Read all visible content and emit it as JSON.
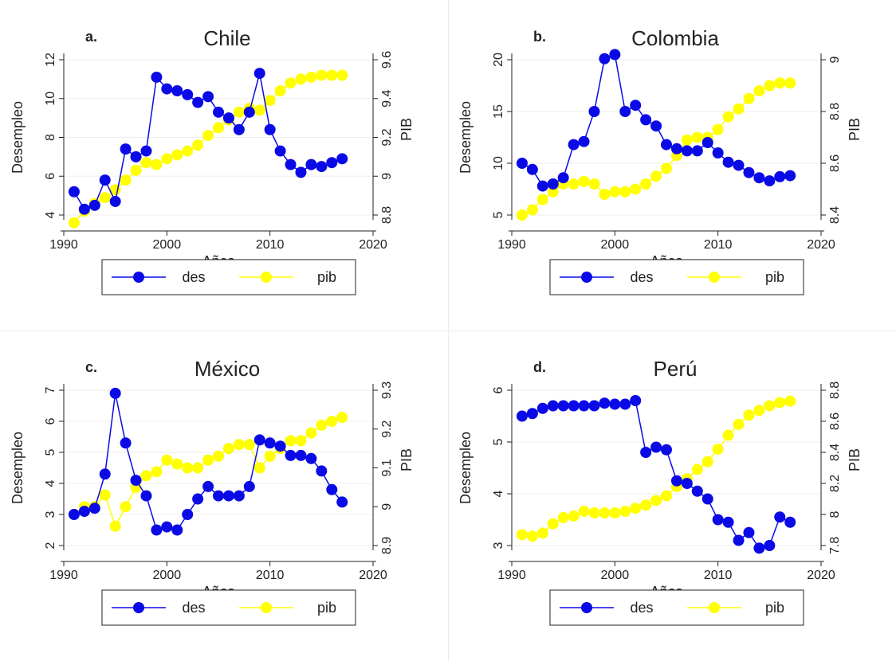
{
  "chart_data": [
    {
      "type": "line",
      "letter": "a.",
      "title": "Chile",
      "xlabel": "Años",
      "ylabel": "Desempleo",
      "y2label": "PIB",
      "x": [
        1991,
        1992,
        1993,
        1994,
        1995,
        1996,
        1997,
        1998,
        1999,
        2000,
        2001,
        2002,
        2003,
        2004,
        2005,
        2006,
        2007,
        2008,
        2009,
        2010,
        2011,
        2012,
        2013,
        2014,
        2015,
        2016,
        2017
      ],
      "xlim": [
        1990,
        2020
      ],
      "xticks": [
        "1990",
        "2000",
        "2010",
        "2020"
      ],
      "ylim": [
        4,
        12
      ],
      "yticks": [
        "4",
        "6",
        "8",
        "10",
        "12"
      ],
      "y2lim": [
        8.8,
        9.6
      ],
      "y2ticks": [
        "8.8",
        "9",
        "9.2",
        "9.4",
        "9.6"
      ],
      "series": [
        {
          "name": "des",
          "color": "#0a0ae6",
          "axis": "left",
          "values": [
            5.2,
            4.3,
            4.5,
            5.8,
            4.7,
            7.4,
            7.0,
            7.3,
            11.1,
            10.5,
            10.4,
            10.2,
            9.8,
            10.1,
            9.3,
            9.0,
            8.4,
            9.3,
            11.3,
            8.4,
            7.3,
            6.6,
            6.2,
            6.6,
            6.5,
            6.7,
            6.9
          ]
        },
        {
          "name": "pib",
          "color": "#ffff00",
          "axis": "right",
          "values": [
            8.76,
            8.82,
            8.86,
            8.89,
            8.93,
            8.98,
            9.03,
            9.07,
            9.06,
            9.09,
            9.11,
            9.13,
            9.16,
            9.21,
            9.25,
            9.29,
            9.33,
            9.35,
            9.34,
            9.39,
            9.44,
            9.48,
            9.5,
            9.51,
            9.52,
            9.52,
            9.52
          ]
        }
      ],
      "legend": "bottom"
    },
    {
      "type": "line",
      "letter": "b.",
      "title": "Colombia",
      "xlabel": "Años",
      "ylabel": "Desempleo",
      "y2label": "PIB",
      "x": [
        1991,
        1992,
        1993,
        1994,
        1995,
        1996,
        1997,
        1998,
        1999,
        2000,
        2001,
        2002,
        2003,
        2004,
        2005,
        2006,
        2007,
        2008,
        2009,
        2010,
        2011,
        2012,
        2013,
        2014,
        2015,
        2016,
        2017
      ],
      "xlim": [
        1990,
        2020
      ],
      "xticks": [
        "1990",
        "2000",
        "2010",
        "2020"
      ],
      "ylim": [
        5,
        20
      ],
      "yticks": [
        "5",
        "10",
        "15",
        "20"
      ],
      "y2lim": [
        8.4,
        9.0
      ],
      "y2ticks": [
        "8.4",
        "8.6",
        "8.8",
        "9"
      ],
      "series": [
        {
          "name": "des",
          "color": "#0a0ae6",
          "axis": "left",
          "values": [
            10.0,
            9.4,
            7.8,
            8.0,
            8.6,
            11.8,
            12.1,
            15.0,
            20.1,
            20.5,
            15.0,
            15.6,
            14.2,
            13.6,
            11.8,
            11.4,
            11.2,
            11.2,
            12.0,
            11.0,
            10.1,
            9.8,
            9.1,
            8.6,
            8.3,
            8.7,
            8.8
          ]
        },
        {
          "name": "pib",
          "color": "#ffff00",
          "axis": "right",
          "values": [
            8.4,
            8.42,
            8.46,
            8.49,
            8.52,
            8.52,
            8.53,
            8.52,
            8.48,
            8.49,
            8.49,
            8.5,
            8.52,
            8.55,
            8.58,
            8.63,
            8.69,
            8.7,
            8.7,
            8.73,
            8.78,
            8.81,
            8.85,
            8.88,
            8.9,
            8.91,
            8.91
          ]
        }
      ],
      "legend": "bottom"
    },
    {
      "type": "line",
      "letter": "c.",
      "title": "México",
      "xlabel": "Años",
      "ylabel": "Desempleo",
      "y2label": "PIB",
      "x": [
        1991,
        1992,
        1993,
        1994,
        1995,
        1996,
        1997,
        1998,
        1999,
        2000,
        2001,
        2002,
        2003,
        2004,
        2005,
        2006,
        2007,
        2008,
        2009,
        2010,
        2011,
        2012,
        2013,
        2014,
        2015,
        2016,
        2017
      ],
      "xlim": [
        1990,
        2020
      ],
      "xticks": [
        "1990",
        "2000",
        "2010",
        "2020"
      ],
      "ylim": [
        2,
        7
      ],
      "yticks": [
        "2",
        "3",
        "4",
        "5",
        "6",
        "7"
      ],
      "y2lim": [
        8.9,
        9.3
      ],
      "y2ticks": [
        "8.9",
        "9",
        "9.1",
        "9.2",
        "9.3"
      ],
      "series": [
        {
          "name": "des",
          "color": "#0a0ae6",
          "axis": "left",
          "values": [
            3.0,
            3.1,
            3.2,
            4.3,
            6.9,
            5.3,
            4.1,
            3.6,
            2.5,
            2.6,
            2.5,
            3.0,
            3.5,
            3.9,
            3.6,
            3.6,
            3.6,
            3.9,
            5.4,
            5.3,
            5.2,
            4.9,
            4.9,
            4.8,
            4.4,
            3.8,
            3.4
          ]
        },
        {
          "name": "pib",
          "color": "#ffff00",
          "axis": "right",
          "values": [
            8.98,
            9.0,
            9.0,
            9.03,
            8.95,
            9.0,
            9.05,
            9.08,
            9.09,
            9.12,
            9.11,
            9.1,
            9.1,
            9.12,
            9.13,
            9.15,
            9.16,
            9.16,
            9.1,
            9.13,
            9.15,
            9.17,
            9.17,
            9.19,
            9.21,
            9.22,
            9.23
          ]
        }
      ],
      "legend": "bottom"
    },
    {
      "type": "line",
      "letter": "d.",
      "title": "Perú",
      "xlabel": "Años",
      "ylabel": "Desempleo",
      "y2label": "PIB",
      "x": [
        1991,
        1992,
        1993,
        1994,
        1995,
        1996,
        1997,
        1998,
        1999,
        2000,
        2001,
        2002,
        2003,
        2004,
        2005,
        2006,
        2007,
        2008,
        2009,
        2010,
        2011,
        2012,
        2013,
        2014,
        2015,
        2016,
        2017
      ],
      "xlim": [
        1990,
        2020
      ],
      "xticks": [
        "1990",
        "2000",
        "2010",
        "2020"
      ],
      "ylim": [
        3,
        6
      ],
      "yticks": [
        "3",
        "4",
        "5",
        "6"
      ],
      "y2lim": [
        7.8,
        8.8
      ],
      "y2ticks": [
        "7.8",
        "8",
        "8.2",
        "8.4",
        "8.6",
        "8.8"
      ],
      "series": [
        {
          "name": "des",
          "color": "#0a0ae6",
          "axis": "left",
          "values": [
            5.5,
            5.55,
            5.65,
            5.7,
            5.7,
            5.7,
            5.7,
            5.7,
            5.75,
            5.73,
            5.73,
            5.8,
            4.8,
            4.9,
            4.85,
            4.25,
            4.2,
            4.05,
            3.9,
            3.5,
            3.45,
            3.1,
            3.25,
            2.95,
            3.0,
            3.55,
            3.45
          ]
        },
        {
          "name": "pib",
          "color": "#ffff00",
          "axis": "right",
          "values": [
            7.87,
            7.86,
            7.88,
            7.94,
            7.98,
            7.99,
            8.02,
            8.01,
            8.01,
            8.01,
            8.02,
            8.04,
            8.06,
            8.09,
            8.12,
            8.18,
            8.23,
            8.29,
            8.34,
            8.42,
            8.51,
            8.58,
            8.64,
            8.67,
            8.7,
            8.72,
            8.73
          ]
        }
      ],
      "legend": "bottom"
    }
  ]
}
